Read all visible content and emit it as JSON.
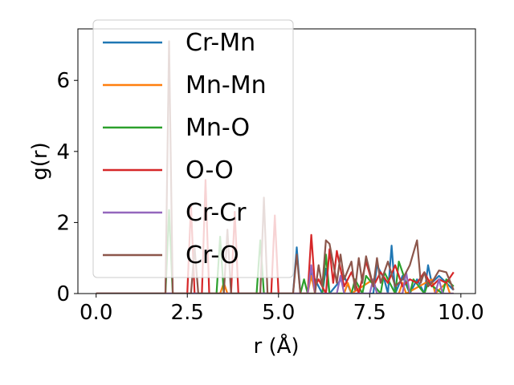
{
  "chart_data": {
    "type": "line",
    "xlabel": "r (Å)",
    "ylabel": "g(r)",
    "xlim": [
      -0.5,
      10.4
    ],
    "ylim": [
      0,
      7.45
    ],
    "xticks": [
      0.0,
      2.5,
      5.0,
      7.5,
      10.0
    ],
    "xtick_labels": [
      "0.0",
      "2.5",
      "5.0",
      "7.5",
      "10.0"
    ],
    "yticks": [
      0,
      2,
      4,
      6
    ],
    "ytick_labels": [
      "0",
      "2",
      "4",
      "6"
    ],
    "grid": false,
    "legend_position": "top-left",
    "series": [
      {
        "name": "Cr-Mn",
        "color": "#1f77b4",
        "x": [
          0,
          5.4,
          5.5,
          5.6,
          5.8,
          5.9,
          6.2,
          6.3,
          6.4,
          6.8,
          7.0,
          7.6,
          7.7,
          7.9,
          8.0,
          8.1,
          8.2,
          8.4,
          8.6,
          8.8,
          9.0,
          9.1,
          9.2,
          9.4,
          9.6,
          9.8
        ],
        "y": [
          0,
          0,
          1.3,
          0,
          0,
          0.6,
          0,
          0.7,
          0,
          0.5,
          0,
          0,
          0.8,
          0.4,
          0,
          1.35,
          0,
          0.5,
          0,
          0.4,
          0,
          0.8,
          0.3,
          0.5,
          0.3,
          0.1
        ]
      },
      {
        "name": "Mn-Mn",
        "color": "#ff7f0e",
        "x": [
          0,
          3.4,
          3.5,
          3.6,
          5.8,
          5.9,
          6.0,
          6.8,
          6.9,
          7.0,
          7.6,
          7.7,
          8.3,
          8.4,
          8.5,
          9.2,
          9.3,
          9.6,
          9.7,
          9.8
        ],
        "y": [
          0,
          0,
          0.3,
          0,
          0,
          0.5,
          0,
          0,
          0.3,
          0,
          0.4,
          0,
          0,
          0.3,
          0,
          0.4,
          0,
          0.3,
          0,
          0
        ]
      },
      {
        "name": "Mn-O",
        "color": "#2ca02c",
        "x": [
          0,
          1.9,
          2.0,
          2.1,
          3.3,
          3.4,
          3.5,
          4.4,
          4.5,
          4.6,
          5.6,
          5.7,
          5.8,
          6.2,
          6.3,
          6.4,
          7.0,
          7.1,
          7.3,
          7.4,
          7.8,
          7.9,
          8.2,
          8.3,
          8.6,
          8.7,
          9.0,
          9.1,
          9.5,
          9.6,
          9.8
        ],
        "y": [
          0,
          0,
          2.35,
          0,
          0,
          1.6,
          0,
          0,
          1.5,
          0,
          0,
          0.4,
          0,
          0,
          1.1,
          0,
          0,
          0.4,
          0,
          0.5,
          0,
          0.6,
          0,
          0.9,
          0,
          0.4,
          0,
          0.3,
          0,
          0.4,
          0.2
        ]
      },
      {
        "name": "O-O",
        "color": "#d62728",
        "x": [
          0,
          2.5,
          2.6,
          2.7,
          2.9,
          3.0,
          3.1,
          3.7,
          3.8,
          3.9,
          4.8,
          4.9,
          5.0,
          5.8,
          5.9,
          6.0,
          6.1,
          6.3,
          6.4,
          6.5,
          6.6,
          6.8,
          7.0,
          7.2,
          7.4,
          7.6,
          7.8,
          8.0,
          8.2,
          8.4,
          8.6,
          8.8,
          9.0,
          9.2,
          9.4,
          9.6,
          9.8
        ],
        "y": [
          0,
          0,
          2.5,
          0,
          0,
          3.2,
          0,
          0,
          2.3,
          0,
          0,
          2.2,
          0,
          0,
          1.65,
          0.2,
          0.4,
          0,
          1.25,
          0.3,
          1.2,
          0.2,
          0.6,
          0,
          0.9,
          0.2,
          0.6,
          0.3,
          0.8,
          0.2,
          0.4,
          0.3,
          0.6,
          0.2,
          0.4,
          0.3,
          0.6
        ]
      },
      {
        "name": "Cr-Cr",
        "color": "#9467bd",
        "x": [
          0,
          5.8,
          5.9,
          6.0,
          6.6,
          6.7,
          6.8,
          7.5,
          7.6,
          7.7,
          8.4,
          8.5,
          8.6,
          9.3,
          9.4,
          9.5,
          9.8
        ],
        "y": [
          0,
          0,
          0.8,
          0,
          0,
          0.5,
          0,
          0,
          0.4,
          0,
          0,
          0.6,
          0,
          0,
          0.4,
          0,
          0
        ]
      },
      {
        "name": "Cr-O",
        "color": "#8c564b",
        "x": [
          0,
          1.9,
          2.0,
          2.1,
          2.6,
          2.7,
          2.8,
          3.5,
          3.6,
          3.7,
          4.5,
          4.6,
          4.7,
          5.4,
          5.5,
          5.6,
          6.0,
          6.1,
          6.2,
          6.3,
          6.4,
          6.6,
          6.7,
          6.8,
          7.0,
          7.1,
          7.2,
          7.3,
          7.4,
          7.6,
          7.7,
          7.8,
          8.0,
          8.2,
          8.4,
          8.6,
          8.8,
          8.9,
          9.0,
          9.1,
          9.2,
          9.4,
          9.6,
          9.8
        ],
        "y": [
          0,
          0,
          7.1,
          0,
          0,
          1.3,
          0,
          0,
          1.8,
          0,
          0,
          2.7,
          0,
          0,
          1.1,
          0,
          0,
          0.8,
          0.2,
          1.5,
          1.4,
          0.3,
          1.1,
          0.4,
          0.9,
          0.1,
          1.0,
          0.3,
          1.05,
          0.2,
          1.0,
          0.3,
          0.9,
          0.2,
          0.4,
          0.8,
          1.5,
          0.3,
          0.6,
          0.2,
          0.3,
          0.65,
          0.6,
          0.1
        ]
      }
    ]
  }
}
